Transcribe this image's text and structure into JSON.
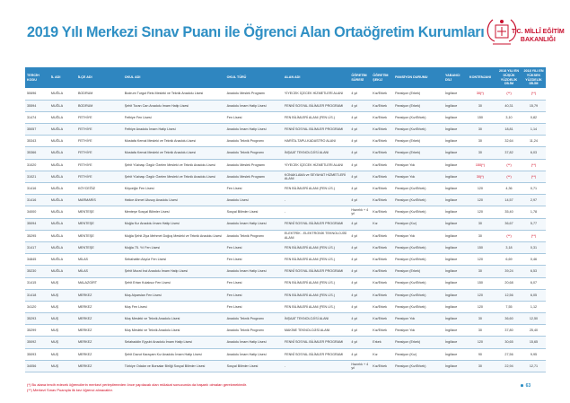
{
  "page": {
    "title": "2019 Yılı Merkezi Sınav Puanı ile Öğrenci Alan Ortaöğretim Kurumları",
    "logo_line1": "T.C. MİLLÎ EĞİTİM",
    "logo_line2": "BAKANLIĞI",
    "page_number": "63"
  },
  "colors": {
    "header": "#2f86c0",
    "title": "#2e8fc4",
    "accent_red": "#d0021b"
  },
  "table": {
    "headers": [
      "TERCİH KODU",
      "İL ADI",
      "İLÇE ADI",
      "OKUL ADI",
      "OKUL TÜRÜ",
      "ALAN ADI",
      "ÖĞRETİM SÜRESİ",
      "ÖĞRETİM ŞEKLİ",
      "PANSİYON DURUMU",
      "YABANCI DİLİ",
      "KONTENJANI",
      "2018 YILI EN DÜŞÜK YÜZDELİK DİLİM",
      "2018 YILI EN YÜKSEK YÜZDELİK DİLİM"
    ],
    "rows": [
      [
        "50696",
        "MUĞLA",
        "BODRUM",
        "Bodrum Turgut Reis Mesleki ve Teknik Anadolu Lisesi",
        "Anadolu Meslek Programı",
        "YİYECEK İÇECEK HİZMETLERİ ALANI",
        "4 yıl",
        "Kız/Erkek",
        "Pansiyon (Erkek)",
        "İngilizce",
        "30(*)",
        "(**)",
        "(**)"
      ],
      [
        "35594",
        "MUĞLA",
        "BODRUM",
        "Şehit Turan Can Anadolu İmam Hatip Lisesi",
        "Anadolu İmam Hatip Lisesi",
        "FENNÎ SOSYAL BİLİMLER PROGRAMI",
        "4 yıl",
        "Kız/Erkek",
        "Pansiyon (Erkek)",
        "İngilizce",
        "30",
        "40,31",
        "15,79"
      ],
      [
        "31474",
        "MUĞLA",
        "FETHİYE",
        "Fethiye Fen Lisesi",
        "Fen Lisesi",
        "FEN BİLİMLERİ ALANI (FEN LİS.)",
        "4 yıl",
        "Kız/Erkek",
        "Pansiyon (Kız/Erkek)",
        "İngilizce",
        "150",
        "3,10",
        "0,82"
      ],
      [
        "35057",
        "MUĞLA",
        "FETHİYE",
        "Fethiye Anadolu İmam Hatip Lisesi",
        "Anadolu İmam Hatip Lisesi",
        "FENNÎ SOSYAL BİLİMLER PROGRAMI",
        "4 yıl",
        "Kız/Erkek",
        "Pansiyon (Kız/Erkek)",
        "İngilizce",
        "30",
        "18,81",
        "1,14"
      ],
      [
        "35343",
        "MUĞLA",
        "FETHİYE",
        "Mustafa Kemal Mesleki ve Teknik Anadolu Lisesi",
        "Anadolu Teknik Programı",
        "HARİTA-TAPU-KADASTRO ALANI",
        "4 yıl",
        "Kız/Erkek",
        "Pansiyon (Erkek)",
        "İngilizce",
        "30",
        "32,64",
        "11,24"
      ],
      [
        "35366",
        "MUĞLA",
        "FETHİYE",
        "Mustafa Kemal Mesleki ve Teknik Anadolu Lisesi",
        "Anadolu Teknik Programı",
        "İNŞAAT TEKNOLOJİSİ ALANI",
        "4 yıl",
        "Kız/Erkek",
        "Pansiyon (Erkek)",
        "İngilizce",
        "30",
        "37,82",
        "6,03"
      ],
      [
        "31020",
        "MUĞLA",
        "FETHİYE",
        "Şehit Yüzbaşı Özgür Özelen Mesleki ve Teknik Anadolu Lisesi",
        "Anadolu Meslek Programı",
        "YİYECEK İÇECEK HİZMETLERİ ALANI",
        "4 yıl",
        "Kız/Erkek",
        "Pansiyon Yok",
        "İngilizce",
        "150(*)",
        "(**)",
        "(**)"
      ],
      [
        "31021",
        "MUĞLA",
        "FETHİYE",
        "Şehit Yüzbaşı Özgür Özelen Mesleki ve Teknik Anadolu Lisesi",
        "Anadolu Meslek Programı",
        "KONAKLAMA ve SEYAHAT HİZMETLERİ ALANI",
        "4 yıl",
        "Kız/Erkek",
        "Pansiyon Yok",
        "İngilizce",
        "30(*)",
        "(**)",
        "(**)"
      ],
      [
        "31416",
        "MUĞLA",
        "KÖYCEĞİZ",
        "Köyceğiz Fen Lisesi",
        "Fen Lisesi",
        "FEN BİLİMLERİ ALANI (FEN LİS.)",
        "4 yıl",
        "Kız/Erkek",
        "Pansiyon (Kız/Erkek)",
        "İngilizce",
        "120",
        "4,36",
        "0,71"
      ],
      [
        "31416",
        "MUĞLA",
        "MARMARİS",
        "Hatice Ahmet Ulusoy Anadolu Lisesi",
        "Anadolu Lisesi",
        "-",
        "4 yıl",
        "Kız/Erkek",
        "Pansiyon (Kız/Erkek)",
        "İngilizce",
        "120",
        "14,57",
        "2,97"
      ],
      [
        "34000",
        "MUĞLA",
        "MENTEŞE",
        "Menteşe Sosyal Bilimler Lisesi",
        "Sosyal Bilimler Lisesi",
        "-",
        "Hazırlık + 4 yıl",
        "Kız/Erkek",
        "Pansiyon (Kız/Erkek)",
        "İngilizce",
        "120",
        "35,40",
        "1,78"
      ],
      [
        "35094",
        "MUĞLA",
        "MENTEŞE",
        "Muğla Kız Anadolu İmam Hatip Lisesi",
        "Anadolu İmam Hatip Lisesi",
        "FENNÎ SOSYAL BİLİMLER PROGRAMI",
        "4 yıl",
        "Kız",
        "Pansiyon (Kız)",
        "İngilizce",
        "30",
        "36,67",
        "5,77"
      ],
      [
        "35295",
        "MUĞLA",
        "MENTEŞE",
        "Muğla Şehit Ziya Mehmet Doğuş Mesleki ve Teknik Anadolu Lisesi",
        "Anadolu Teknik Programı",
        "ELEKTRİK - ELEKTRONİK TEKNOLOJİSİ ALANI",
        "4 yıl",
        "Kız/Erkek",
        "Pansiyon Yok",
        "İngilizce",
        "30",
        "(**)",
        "(**)"
      ],
      [
        "31417",
        "MUĞLA",
        "MENTEŞE",
        "Muğla 75. Yıl Fen Lisesi",
        "Fen Lisesi",
        "FEN BİLİMLERİ ALANI (FEN LİS.)",
        "4 yıl",
        "Kız/Erkek",
        "Pansiyon (Kız/Erkek)",
        "İngilizce",
        "150",
        "3,18",
        "0,31"
      ],
      [
        "34845",
        "MUĞLA",
        "MİLAS",
        "Sebahattin Akyüz Fen Lisesi",
        "Fen Lisesi",
        "FEN BİLİMLERİ ALANI (FEN LİS.)",
        "4 yıl",
        "Kız/Erkek",
        "Pansiyon (Kız/Erkek)",
        "İngilizce",
        "120",
        "6,69",
        "0,46"
      ],
      [
        "35230",
        "MUĞLA",
        "MİLAS",
        "Şehit Murat İnci Anadolu İmam Hatip Lisesi",
        "Anadolu İmam Hatip Lisesi",
        "FENNÎ SOSYAL BİLİMLER PROGRAMI",
        "4 yıl",
        "Kız/Erkek",
        "Pansiyon (Erkek)",
        "İngilizce",
        "30",
        "39,24",
        "6,53"
      ],
      [
        "31415",
        "MUŞ",
        "MALAZGİRT",
        "Şehit Ertan Kulaksız Fen Lisesi",
        "Fen Lisesi",
        "FEN BİLİMLERİ ALANI (FEN LİS.)",
        "4 yıl",
        "Kız/Erkek",
        "Pansiyon (Kız/Erkek)",
        "İngilizce",
        "150",
        "20,68",
        "6,07"
      ],
      [
        "31418",
        "MUŞ",
        "MERKEZ",
        "Muş Alparslan Fen Lisesi",
        "Fen Lisesi",
        "FEN BİLİMLERİ ALANI (FEN LİS.)",
        "4 yıl",
        "Kız/Erkek",
        "Pansiyon (Kız/Erkek)",
        "İngilizce",
        "120",
        "12,56",
        "6,05"
      ],
      [
        "34120",
        "MUŞ",
        "MERKEZ",
        "Muş Fen Lisesi",
        "Fen Lisesi",
        "FEN BİLİMLERİ ALANI (FEN LİS.)",
        "4 yıl",
        "Kız/Erkek",
        "Pansiyon (Kız/Erkek)",
        "İngilizce",
        "120",
        "7,55",
        "1,12"
      ],
      [
        "35293",
        "MUŞ",
        "MERKEZ",
        "Muş Mesleki ve Teknik Anadolu Lisesi",
        "Anadolu Teknik Programı",
        "İNŞAAT TEKNOLOJİSİ ALANI",
        "4 yıl",
        "Kız/Erkek",
        "Pansiyon Yok",
        "İngilizce",
        "30",
        "36,60",
        "12,50"
      ],
      [
        "35299",
        "MUŞ",
        "MERKEZ",
        "Muş Mesleki ve Teknik Anadolu Lisesi",
        "Anadolu Teknik Programı",
        "MAKİNE TEKNOLOJİSİ ALANI",
        "4 yıl",
        "Kız/Erkek",
        "Pansiyon Yok",
        "İngilizce",
        "30",
        "37,80",
        "25,40"
      ],
      [
        "35092",
        "MUŞ",
        "MERKEZ",
        "Selahaddin Eyyubi Anadolu İmam Hatip Lisesi",
        "Anadolu İmam Hatip Lisesi",
        "FENNÎ SOSYAL BİLİMLER PROGRAMI",
        "4 yıl",
        "Erkek",
        "Pansiyon (Erkek)",
        "İngilizce",
        "120",
        "30,65",
        "15,65"
      ],
      [
        "35093",
        "MUŞ",
        "MERKEZ",
        "Şehit Davut Karaçam Kız Anadolu İmam Hatip Lisesi",
        "Anadolu İmam Hatip Lisesi",
        "FENNÎ SOSYAL BİLİMLER PROGRAMI",
        "4 yıl",
        "Kız",
        "Pansiyon (Kız)",
        "İngilizce",
        "90",
        "27,56",
        "9,95"
      ],
      [
        "34056",
        "MUŞ",
        "MERKEZ",
        "Türkiye Odalar ve Borsalar Birliği Sosyal Bilimler Lisesi",
        "Sosyal Bilimler Lisesi",
        "-",
        "Hazırlık + 4 yıl",
        "Kız/Erkek",
        "Pansiyon (Kız/Erkek)",
        "İngilizce",
        "30",
        "22,94",
        "12,71"
      ]
    ]
  },
  "footnotes": [
    "(*) Bu alana tercih edecek öğrencilerin merkezi yerleştirmeden önce yapılacak olan mülakat sonucunda da başarılı olmaları gerekmektedir.",
    "(**) Merkezi Sınav Puanıyla ilk kez öğrenci alınacaktır."
  ]
}
